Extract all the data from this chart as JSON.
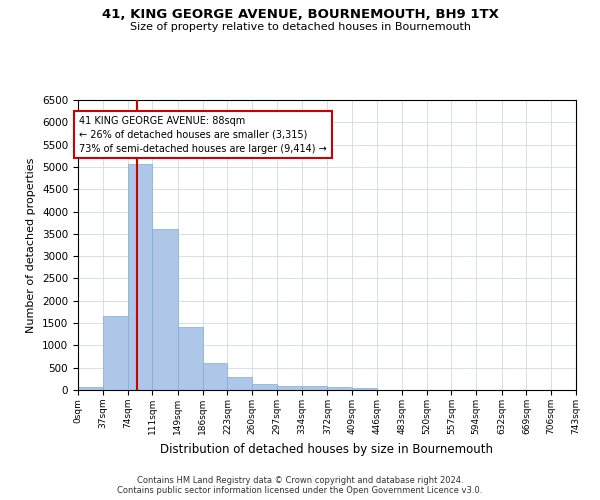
{
  "title": "41, KING GEORGE AVENUE, BOURNEMOUTH, BH9 1TX",
  "subtitle": "Size of property relative to detached houses in Bournemouth",
  "xlabel": "Distribution of detached houses by size in Bournemouth",
  "ylabel": "Number of detached properties",
  "footer_line1": "Contains HM Land Registry data © Crown copyright and database right 2024.",
  "footer_line2": "Contains public sector information licensed under the Open Government Licence v3.0.",
  "property_label": "41 KING GEORGE AVENUE: 88sqm",
  "annotation_line1": "← 26% of detached houses are smaller (3,315)",
  "annotation_line2": "73% of semi-detached houses are larger (9,414) →",
  "property_size_sqm": 88,
  "bar_color": "#aec6e8",
  "bar_edge_color": "#7bafd4",
  "red_line_color": "#cc0000",
  "annotation_box_color": "#cc0000",
  "grid_color": "#d0d8ea",
  "background_color": "#ffffff",
  "bin_edges": [
    0,
    37,
    74,
    111,
    149,
    186,
    223,
    260,
    297,
    334,
    372,
    409,
    446,
    483,
    520,
    557,
    594,
    632,
    669,
    706,
    743
  ],
  "bin_labels": [
    "0sqm",
    "37sqm",
    "74sqm",
    "111sqm",
    "149sqm",
    "186sqm",
    "223sqm",
    "260sqm",
    "297sqm",
    "334sqm",
    "372sqm",
    "409sqm",
    "446sqm",
    "483sqm",
    "520sqm",
    "557sqm",
    "594sqm",
    "632sqm",
    "669sqm",
    "706sqm",
    "743sqm"
  ],
  "counts": [
    75,
    1650,
    5060,
    3600,
    1410,
    615,
    290,
    140,
    100,
    80,
    60,
    55,
    0,
    0,
    0,
    0,
    0,
    0,
    0,
    0
  ],
  "ylim": [
    0,
    6500
  ],
  "yticks": [
    0,
    500,
    1000,
    1500,
    2000,
    2500,
    3000,
    3500,
    4000,
    4500,
    5000,
    5500,
    6000,
    6500
  ]
}
